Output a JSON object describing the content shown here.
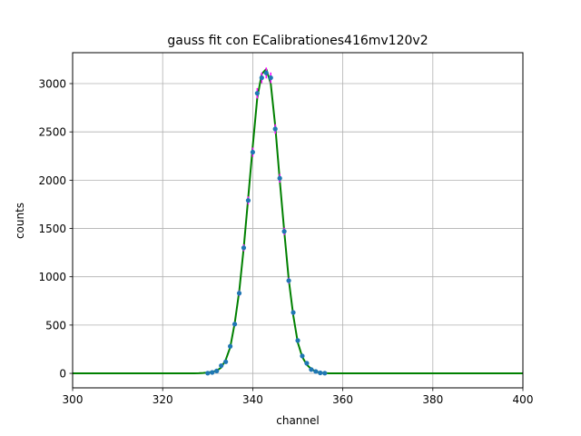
{
  "chart_data": {
    "type": "scatter",
    "title": "gauss fit con ECalibrationes416mv120v2",
    "xlabel": "channel",
    "ylabel": "counts",
    "xlim": [
      300,
      400
    ],
    "ylim": [
      -150,
      3320
    ],
    "xticks": [
      300,
      320,
      340,
      360,
      380,
      400
    ],
    "yticks": [
      0,
      500,
      1000,
      1500,
      2000,
      2500,
      3000
    ],
    "grid": true,
    "series": [
      {
        "kind": "points",
        "color": "#1f77b4",
        "error_color": "#ff00ff",
        "x": [
          330,
          331,
          332,
          333,
          334,
          335,
          336,
          337,
          338,
          339,
          340,
          341,
          342,
          343,
          344,
          345,
          346,
          347,
          348,
          349,
          350,
          351,
          352,
          353,
          354,
          355,
          356
        ],
        "y": [
          2,
          10,
          25,
          80,
          120,
          280,
          510,
          830,
          1300,
          1790,
          2290,
          2900,
          3060,
          3110,
          3060,
          2530,
          2020,
          1470,
          960,
          630,
          340,
          180,
          105,
          40,
          20,
          5,
          2
        ],
        "yerr": [
          1,
          3,
          5,
          9,
          11,
          17,
          23,
          29,
          36,
          42,
          48,
          54,
          55,
          56,
          55,
          50,
          45,
          38,
          31,
          25,
          18,
          13,
          10,
          6,
          4,
          2,
          1
        ]
      },
      {
        "kind": "line",
        "color": "#008000",
        "x": [
          300,
          326,
          327,
          328,
          329,
          330,
          331,
          332,
          333,
          334,
          335,
          336,
          337,
          338,
          339,
          340,
          341,
          342,
          343,
          344,
          345,
          346,
          347,
          348,
          349,
          350,
          351,
          352,
          353,
          354,
          355,
          356,
          357,
          358,
          359,
          360,
          400
        ],
        "y": [
          0,
          0,
          1,
          2,
          4,
          9,
          16,
          28,
          60,
          140,
          270,
          520,
          850,
          1300,
          1820,
          2350,
          2850,
          3100,
          3150,
          3000,
          2560,
          2000,
          1470,
          970,
          600,
          320,
          170,
          90,
          45,
          20,
          8,
          3,
          1,
          0,
          0,
          0,
          0
        ]
      }
    ]
  }
}
